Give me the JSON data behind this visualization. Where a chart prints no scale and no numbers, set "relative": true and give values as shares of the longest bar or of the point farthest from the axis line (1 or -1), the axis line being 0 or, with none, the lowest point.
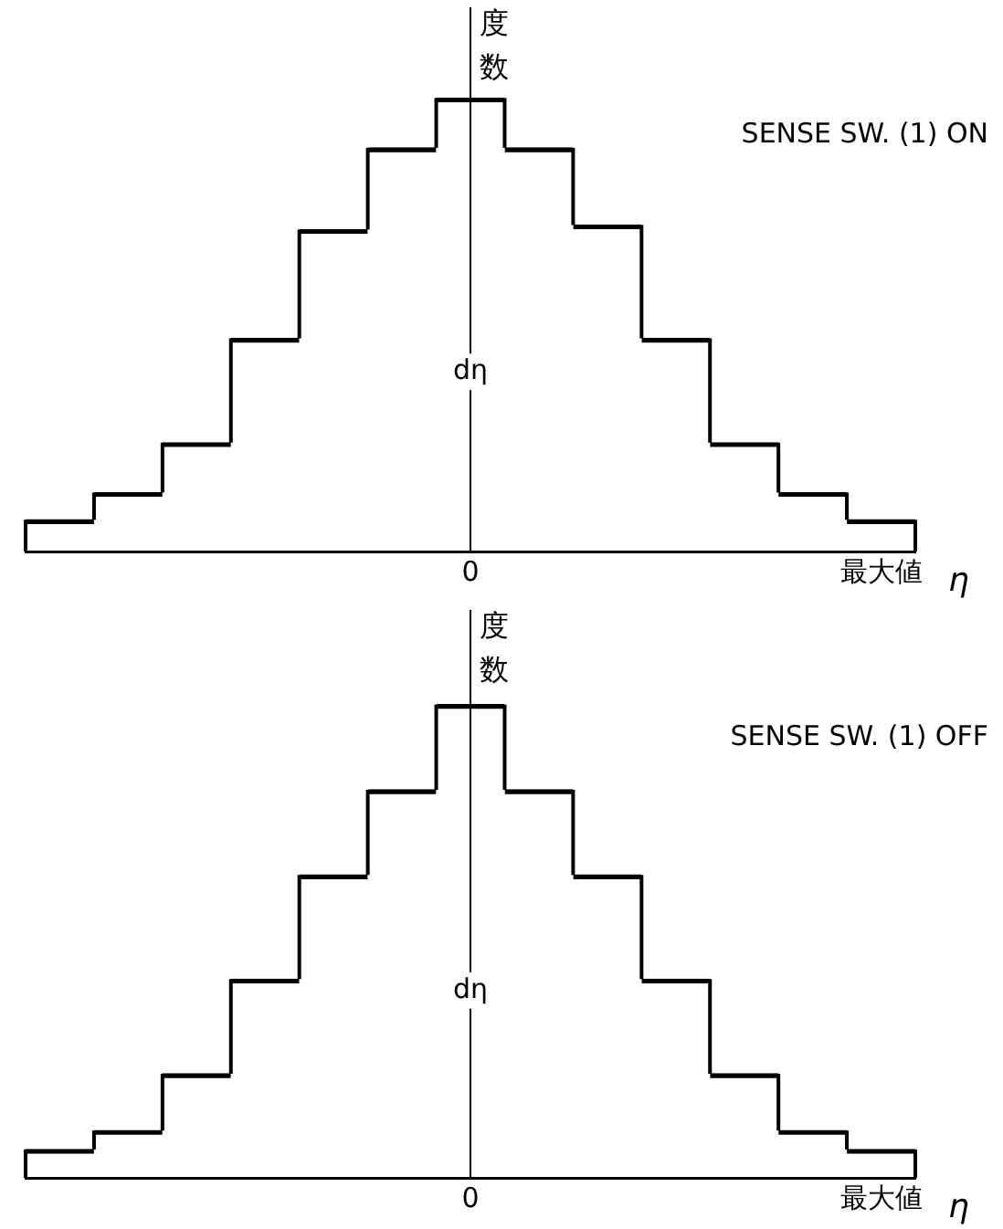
{
  "chart_data": [
    {
      "type": "bar",
      "ylabel": "度数",
      "xlabel": "η",
      "relative": true,
      "color": "#000000",
      "legend": false,
      "categories": [
        null,
        null,
        null,
        null,
        null,
        null,
        "0",
        null,
        null,
        null,
        null,
        null,
        "最大値"
      ],
      "values": [
        0.07,
        0.13,
        0.24,
        0.47,
        0.71,
        0.89,
        1,
        0.89,
        0.72,
        0.47,
        0.24,
        0.13,
        0.07
      ],
      "annotations": [
        "SENSE SW. (1) ON",
        "dη"
      ]
    },
    {
      "type": "bar",
      "ylabel": "度数",
      "xlabel": "η",
      "relative": true,
      "color": "#000000",
      "legend": false,
      "categories": [
        null,
        null,
        null,
        null,
        null,
        null,
        "0",
        null,
        null,
        null,
        null,
        null,
        "最大値"
      ],
      "values": [
        0.06,
        0.1,
        0.22,
        0.42,
        0.64,
        0.82,
        1,
        0.82,
        0.64,
        0.42,
        0.22,
        0.1,
        0.06
      ],
      "annotations": [
        "SENSE SW. (1) OFF",
        "dη"
      ]
    }
  ]
}
